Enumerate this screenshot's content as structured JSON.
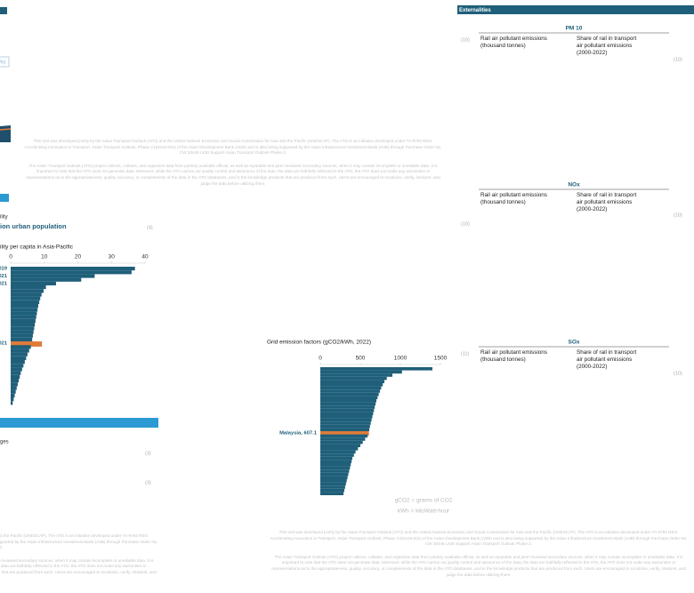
{
  "header": {
    "title": "Externalities"
  },
  "pollutants": [
    {
      "name": "PM 10",
      "columns": [
        "Rail air pollutant emissions (thousand tonnes)",
        "Share of rail in transport air pollutant emissions (2000-2022)"
      ],
      "badges": [
        "(10)",
        "(10)"
      ]
    },
    {
      "name": "NOx",
      "columns": [
        "Rail air pollutant emissions (thousand tonnes)",
        "Share of rail in transport air pollutant emissions (2000-2022)"
      ],
      "badges": [
        "(10)",
        "(10)"
      ]
    },
    {
      "name": "SOx",
      "columns": [
        "Rail air pollutant emissions (thousand tonnes)",
        "Share of rail in transport air pollutant emissions (2000-2022)"
      ],
      "badges": [
        "(11)",
        "(10)"
      ]
    }
  ],
  "left_chart": {
    "title": "ion urban population",
    "subtitle": "ility per capita in Asia-Pacific",
    "xlim": [
      0,
      40
    ],
    "xticks": [
      0,
      10,
      20,
      30,
      40
    ],
    "color": "#1f5f7a",
    "highlight": {
      "index": 20,
      "color": "#e07b39"
    },
    "labels": [
      ", 2019",
      null,
      ", 2021",
      null,
      ", 2021",
      null,
      null,
      null,
      null,
      null,
      null,
      null,
      null,
      null,
      null,
      null,
      null,
      null,
      null,
      null,
      ", 2021",
      null,
      null,
      null,
      null,
      null,
      null,
      null,
      null,
      null,
      null,
      null,
      null,
      null,
      null,
      null,
      null
    ],
    "values": [
      37,
      36,
      25,
      21,
      13.5,
      10.5,
      9.8,
      9.2,
      8.8,
      8.5,
      8.2,
      8,
      7.8,
      7.6,
      7.4,
      7.2,
      7,
      6.8,
      6.6,
      6.4,
      9.3,
      6,
      5.5,
      5,
      4.6,
      4.2,
      3.8,
      3.4,
      3,
      2.7,
      2.4,
      2.1,
      1.8,
      1.5,
      1.2,
      0.9,
      0.6
    ]
  },
  "grid_chart": {
    "title": "Grid emission factors (gCO2/kWh, 2022)",
    "xlim": [
      0,
      1500
    ],
    "xticks": [
      0,
      500,
      1000,
      1500
    ],
    "color": "#1f5f7a",
    "highlight": {
      "index": 20,
      "color": "#e07b39"
    },
    "labels": [
      null,
      null,
      null,
      null,
      null,
      null,
      null,
      null,
      null,
      null,
      null,
      null,
      null,
      null,
      null,
      null,
      null,
      null,
      null,
      null,
      "Malaysia, 607.1",
      null,
      null,
      null,
      null,
      null,
      null,
      null,
      null,
      null,
      null,
      null,
      null,
      null,
      null,
      null,
      null,
      null,
      null,
      null
    ],
    "values": [
      1400,
      1020,
      900,
      830,
      800,
      780,
      760,
      745,
      730,
      715,
      700,
      690,
      680,
      670,
      660,
      650,
      640,
      630,
      620,
      612,
      607.1,
      590,
      560,
      530,
      500,
      470,
      440,
      420,
      400,
      390,
      380,
      370,
      360,
      350,
      340,
      330,
      320,
      310,
      300,
      290
    ],
    "notes": [
      "gCO2 = grams of CO2",
      "kWh = kiloWatt-hour"
    ]
  },
  "fragments": {
    "box_text": "%)",
    "label_a": "ility",
    "label_b": "ges"
  },
  "badges": {
    "middle": "(4)",
    "left": [
      "(3)",
      "(3)"
    ]
  },
  "disclaimer": [
    "This tool was developed jointly by the Asian Transport Outlook (ATO) and the United Nations Economic and Social Commission for Asia and the Pacific (UNESCAP). The ATO is an initiative developed under TA-9792 REG: Accelerating Innovation in Transport. Asian Transport Outlook, Phase 3 (53119-001) of the Asian Development Bank (ADB) and is also being supported by the Asian Infrastructure Investment Bank (AIIB) through Purchase Order No. CW 30448 LKBI Support Asian Transport Outlook Phase 3.",
    "The Asian Transport Outlook (ATO) project collects, collates, and organizes data from publicly available official, as well as reputable and peer-reviewed secondary sources, when it may contain incomplete or unreliable data. It is important to note that the ATO does not generate data. Moreover, while the ATO carries out quality control and assurance of the data, the data are faithfully reflected in the ATO, the ATO does not make any warranties or representations as to the appropriateness, quality, accuracy, or completeness of the data in the ATO databases, and in the knowledge products that are produced from such. Users are encouraged to scrutinize, verify, interpret, and judge the data before utilizing them."
  ]
}
